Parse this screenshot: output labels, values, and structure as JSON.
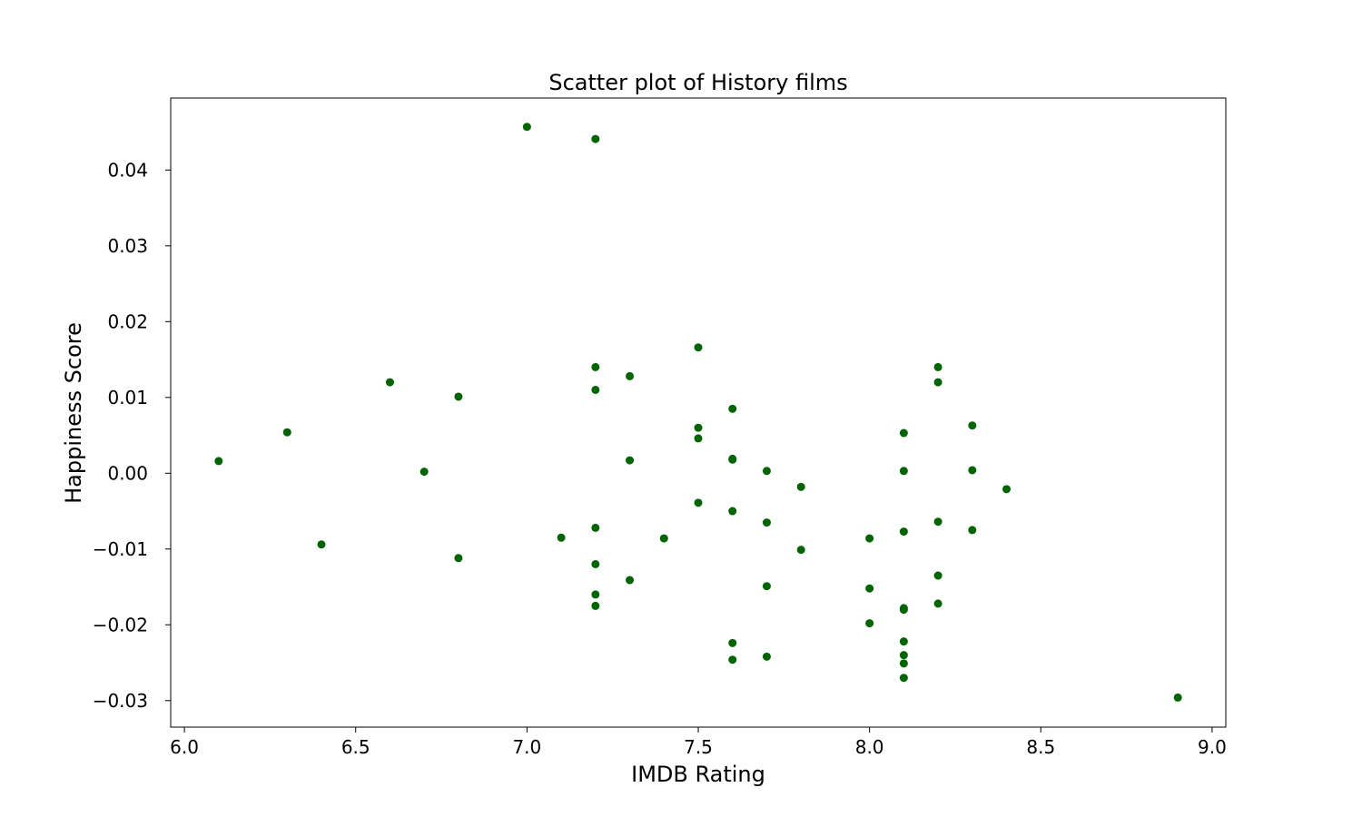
{
  "chart_data": {
    "type": "scatter",
    "title": "Scatter plot of History films",
    "xlabel": "IMDB Rating",
    "ylabel": "Happiness Score",
    "xlim": [
      5.96,
      9.04
    ],
    "ylim": [
      -0.0335,
      0.0495
    ],
    "xticks": [
      6.0,
      6.5,
      7.0,
      7.5,
      8.0,
      8.5,
      9.0
    ],
    "xtick_labels": [
      "6.0",
      "6.5",
      "7.0",
      "7.5",
      "8.0",
      "8.5",
      "9.0"
    ],
    "yticks": [
      -0.03,
      -0.02,
      -0.01,
      0.0,
      0.01,
      0.02,
      0.03,
      0.04
    ],
    "ytick_labels": [
      "−0.03",
      "−0.02",
      "−0.01",
      "0.00",
      "0.01",
      "0.02",
      "0.03",
      "0.04"
    ],
    "grid": false,
    "marker_color": "#006400",
    "points": [
      {
        "x": 6.1,
        "y": 0.0016
      },
      {
        "x": 6.3,
        "y": 0.0054
      },
      {
        "x": 6.4,
        "y": -0.0094
      },
      {
        "x": 6.6,
        "y": 0.012
      },
      {
        "x": 6.7,
        "y": 0.0002
      },
      {
        "x": 6.8,
        "y": 0.0101
      },
      {
        "x": 6.8,
        "y": -0.0112
      },
      {
        "x": 7.0,
        "y": 0.0457
      },
      {
        "x": 7.1,
        "y": -0.0085
      },
      {
        "x": 7.2,
        "y": 0.0441
      },
      {
        "x": 7.2,
        "y": 0.014
      },
      {
        "x": 7.2,
        "y": 0.011
      },
      {
        "x": 7.2,
        "y": -0.0072
      },
      {
        "x": 7.2,
        "y": -0.012
      },
      {
        "x": 7.2,
        "y": -0.016
      },
      {
        "x": 7.2,
        "y": -0.0175
      },
      {
        "x": 7.3,
        "y": 0.0128
      },
      {
        "x": 7.3,
        "y": 0.0017
      },
      {
        "x": 7.3,
        "y": -0.0141
      },
      {
        "x": 7.4,
        "y": -0.0086
      },
      {
        "x": 7.5,
        "y": 0.0166
      },
      {
        "x": 7.5,
        "y": 0.006
      },
      {
        "x": 7.5,
        "y": 0.0046
      },
      {
        "x": 7.5,
        "y": -0.0039
      },
      {
        "x": 7.6,
        "y": 0.0085
      },
      {
        "x": 7.6,
        "y": 0.0019
      },
      {
        "x": 7.6,
        "y": 0.0018
      },
      {
        "x": 7.6,
        "y": -0.005
      },
      {
        "x": 7.6,
        "y": -0.0224
      },
      {
        "x": 7.6,
        "y": -0.0246
      },
      {
        "x": 7.7,
        "y": 0.0003
      },
      {
        "x": 7.7,
        "y": -0.0065
      },
      {
        "x": 7.7,
        "y": -0.0149
      },
      {
        "x": 7.7,
        "y": -0.0242
      },
      {
        "x": 7.8,
        "y": -0.0018
      },
      {
        "x": 7.8,
        "y": -0.0101
      },
      {
        "x": 8.0,
        "y": -0.0086
      },
      {
        "x": 8.0,
        "y": -0.0152
      },
      {
        "x": 8.0,
        "y": -0.0198
      },
      {
        "x": 8.1,
        "y": 0.0053
      },
      {
        "x": 8.1,
        "y": 0.0003
      },
      {
        "x": 8.1,
        "y": -0.0077
      },
      {
        "x": 8.1,
        "y": -0.0178
      },
      {
        "x": 8.1,
        "y": -0.018
      },
      {
        "x": 8.1,
        "y": -0.0222
      },
      {
        "x": 8.1,
        "y": -0.024
      },
      {
        "x": 8.1,
        "y": -0.0251
      },
      {
        "x": 8.1,
        "y": -0.027
      },
      {
        "x": 8.2,
        "y": 0.014
      },
      {
        "x": 8.2,
        "y": 0.012
      },
      {
        "x": 8.2,
        "y": -0.0064
      },
      {
        "x": 8.2,
        "y": -0.0135
      },
      {
        "x": 8.2,
        "y": -0.0172
      },
      {
        "x": 8.3,
        "y": 0.0063
      },
      {
        "x": 8.3,
        "y": 0.0004
      },
      {
        "x": 8.3,
        "y": -0.0075
      },
      {
        "x": 8.4,
        "y": -0.0021
      },
      {
        "x": 8.9,
        "y": -0.0296
      }
    ]
  }
}
